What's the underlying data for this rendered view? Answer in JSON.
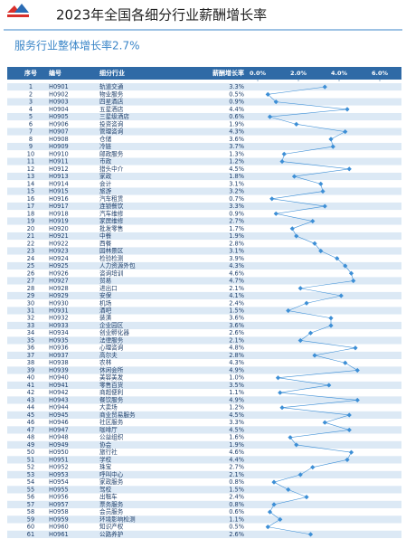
{
  "chart_data": {
    "type": "dot-table",
    "title": "2023年全国各细分行业薪酬增长率",
    "subtitle": "服务行业整体增长率2.7%",
    "column_headers": [
      "序号",
      "编号",
      "细分行业",
      "薪酬增长率"
    ],
    "ids": [
      1,
      2,
      3,
      4,
      5,
      6,
      7,
      8,
      9,
      10,
      11,
      12,
      13,
      14,
      15,
      16,
      17,
      18,
      19,
      20,
      21,
      22,
      23,
      24,
      25,
      26,
      27,
      28,
      29,
      30,
      31,
      32,
      33,
      34,
      35,
      36,
      37,
      38,
      39,
      40,
      41,
      42,
      43,
      44,
      45,
      46,
      47,
      48,
      49,
      50,
      51,
      52,
      53,
      54,
      55,
      56,
      57,
      58,
      59,
      60,
      61
    ],
    "codes": [
      "H0901",
      "H0902",
      "H0903",
      "H0904",
      "H0905",
      "H0906",
      "H0907",
      "H0908",
      "H0909",
      "H0910",
      "H0911",
      "H0912",
      "H0913",
      "H0914",
      "H0915",
      "H0916",
      "H0917",
      "H0918",
      "H0919",
      "H0920",
      "H0921",
      "H0922",
      "H0923",
      "H0924",
      "H0925",
      "H0926",
      "H0927",
      "H0928",
      "H0929",
      "H0930",
      "H0931",
      "H0932",
      "H0933",
      "H0934",
      "H0935",
      "H0936",
      "H0937",
      "H0938",
      "H0939",
      "H0940",
      "H0941",
      "H0942",
      "H0943",
      "H0944",
      "H0945",
      "H0946",
      "H0947",
      "H0948",
      "H0949",
      "H0950",
      "H0951",
      "H0952",
      "H0953",
      "H0954",
      "H0955",
      "H0956",
      "H0957",
      "H0958",
      "H0959",
      "H0960",
      "H0961"
    ],
    "categories": [
      "轨道交通",
      "物业服务",
      "四星酒店",
      "五星酒店",
      "三星级酒店",
      "投资咨询",
      "管理咨询",
      "仓储",
      "冷链",
      "邮政服务",
      "市政",
      "猎头中介",
      "家政",
      "会计",
      "旅游",
      "汽车租赁",
      "连锁餐饮",
      "汽车维修",
      "家居维修",
      "批发零售",
      "中餐",
      "西餐",
      "园林景区",
      "检验检测",
      "人力资源外包",
      "咨询培训",
      "贸易",
      "进出口",
      "安保",
      "机场",
      "酒吧",
      "装潢",
      "企业园区",
      "创业孵化器",
      "法律服务",
      "心理咨询",
      "高尔夫",
      "农林",
      "休闲会所",
      "美容美发",
      "零售百货",
      "商超便利",
      "餐饮服务",
      "大卖场",
      "商业贸易服务",
      "社区服务",
      "咖啡厅",
      "公益组织",
      "协会",
      "旅行社",
      "学校",
      "珠宝",
      "呼叫中心",
      "家政服务",
      "驾校",
      "出租车",
      "票务服务",
      "会员服务",
      "环境影响检测",
      "知识产权",
      "公路养护"
    ],
    "values": [
      3.3,
      0.5,
      0.9,
      4.4,
      0.6,
      1.9,
      4.3,
      3.6,
      3.7,
      1.3,
      1.2,
      4.5,
      1.8,
      3.1,
      3.2,
      0.7,
      3.3,
      0.9,
      2.7,
      1.7,
      1.9,
      2.8,
      3.1,
      3.9,
      4.3,
      4.6,
      4.7,
      2.1,
      4.1,
      2.4,
      1.5,
      3.6,
      3.6,
      2.6,
      2.1,
      4.8,
      2.8,
      4.3,
      4.9,
      1.0,
      3.5,
      1.1,
      4.9,
      1.2,
      4.5,
      3.3,
      4.5,
      1.6,
      1.9,
      4.6,
      4.4,
      2.7,
      2.1,
      0.8,
      1.5,
      2.4,
      0.8,
      0.6,
      1.1,
      0.5,
      2.6
    ],
    "value_labels": [
      "3.3%",
      "0.5%",
      "0.9%",
      "4.4%",
      "0.6%",
      "1.9%",
      "4.3%",
      "3.6%",
      "3.7%",
      "1.3%",
      "1.2%",
      "4.5%",
      "1.8%",
      "3.1%",
      "3.2%",
      "0.7%",
      "3.3%",
      "0.9%",
      "2.7%",
      "1.7%",
      "1.9%",
      "2.8%",
      "3.1%",
      "3.9%",
      "4.3%",
      "4.6%",
      "4.7%",
      "2.1%",
      "4.1%",
      "2.4%",
      "1.5%",
      "3.6%",
      "3.6%",
      "2.6%",
      "2.1%",
      "4.8%",
      "2.8%",
      "4.3%",
      "4.9%",
      "1.0%",
      "3.5%",
      "1.1%",
      "4.9%",
      "1.2%",
      "4.5%",
      "3.3%",
      "4.5%",
      "1.6%",
      "1.9%",
      "4.6%",
      "4.4%",
      "2.7%",
      "2.1%",
      "0.8%",
      "1.5%",
      "2.4%",
      "0.8%",
      "0.6%",
      "1.1%",
      "0.5%",
      "2.6%"
    ],
    "color": "#3d8fd6",
    "xlim": [
      0,
      6
    ],
    "xticks": [
      {
        "value": 0,
        "label": "0.0%"
      },
      {
        "value": 2,
        "label": "2.0%"
      },
      {
        "value": 4,
        "label": "4.0%"
      },
      {
        "value": 6,
        "label": "6.0%"
      }
    ]
  }
}
